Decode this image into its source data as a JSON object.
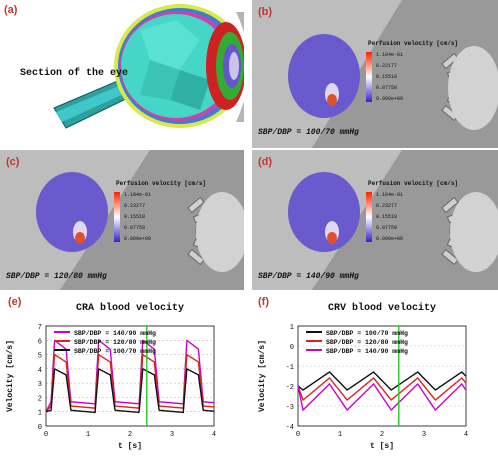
{
  "panels": {
    "a": {
      "label": "(a)",
      "caption": "Section of the eye"
    },
    "b": {
      "label": "(b)",
      "legend_title": "Perfusion velocity [cm/s]",
      "ticks": [
        "1.104e-01",
        "0.22177",
        "0.15518",
        "0.07759",
        "0.000e+00"
      ],
      "condition": "SBP/DBP = 100/70 mmHg"
    },
    "c": {
      "label": "(c)",
      "legend_title": "Perfusion velocity [cm/s]",
      "ticks": [
        "1.104e-01",
        "0.23277",
        "0.15518",
        "0.07759",
        "0.000e+00"
      ],
      "condition": "SBP/DBP = 120/80 mmHg"
    },
    "d": {
      "label": "(d)",
      "legend_title": "Perfusion velocity [cm/s]",
      "ticks": [
        "1.104e-01",
        "0.23277",
        "0.15518",
        "0.07759",
        "0.000e+00"
      ],
      "condition": "SBP/DBP = 140/90 mmHg"
    },
    "e": {
      "label": "(e)"
    },
    "f": {
      "label": "(f)"
    }
  },
  "colors": {
    "background_gray": "#a9a9a9",
    "eye_blue": "#6a5acd",
    "series_magenta": "#cc00cc",
    "series_red": "#dd2222",
    "series_black": "#111111",
    "marker_green": "#22cc22",
    "label_red": "#c0392b"
  },
  "chart_data": [
    {
      "type": "line",
      "title": "CRA blood velocity",
      "xlabel": "t [s]",
      "ylabel": "Velocity [cm/s]",
      "xlim": [
        0,
        4
      ],
      "ylim": [
        0,
        7
      ],
      "xticks": [
        0,
        1,
        2,
        3,
        4
      ],
      "yticks": [
        0,
        1,
        2,
        3,
        4,
        5,
        6,
        7
      ],
      "legend_position": "top-left",
      "marker_x": 2.4,
      "series": [
        {
          "name": "SBP/DBP = 140/90 mmHg",
          "color": "#cc00cc",
          "peak": 6.0,
          "trough": 1.7,
          "phase_shift": 0
        },
        {
          "name": "SBP/DBP = 120/80 mmHg",
          "color": "#dd2222",
          "peak": 5.0,
          "trough": 1.4,
          "phase_shift": 0
        },
        {
          "name": "SBP/DBP = 100/70 mmHg",
          "color": "#111111",
          "peak": 4.0,
          "trough": 1.1,
          "phase_shift": 0
        }
      ],
      "period": 1.05,
      "initial_value": 1.0
    },
    {
      "type": "line",
      "title": "CRV blood velocity",
      "xlabel": "t [s]",
      "ylabel": "Velocity [cm/s]",
      "xlim": [
        0,
        4
      ],
      "ylim": [
        -4,
        1
      ],
      "xticks": [
        0,
        1,
        2,
        3,
        4
      ],
      "yticks": [
        -4,
        -3,
        -2,
        -1,
        0,
        1
      ],
      "legend_position": "top-left",
      "marker_x": 2.4,
      "series": [
        {
          "name": "SBP/DBP = 100/70 mmHg",
          "color": "#111111",
          "peak": -1.3,
          "trough": -2.2
        },
        {
          "name": "SBP/DBP = 120/80 mmHg",
          "color": "#dd2222",
          "peak": -1.6,
          "trough": -2.7
        },
        {
          "name": "SBP/DBP = 140/90 mmHg",
          "color": "#cc00cc",
          "peak": -1.9,
          "trough": -3.2
        }
      ],
      "period": 1.05,
      "initial_value": -2.0
    }
  ]
}
